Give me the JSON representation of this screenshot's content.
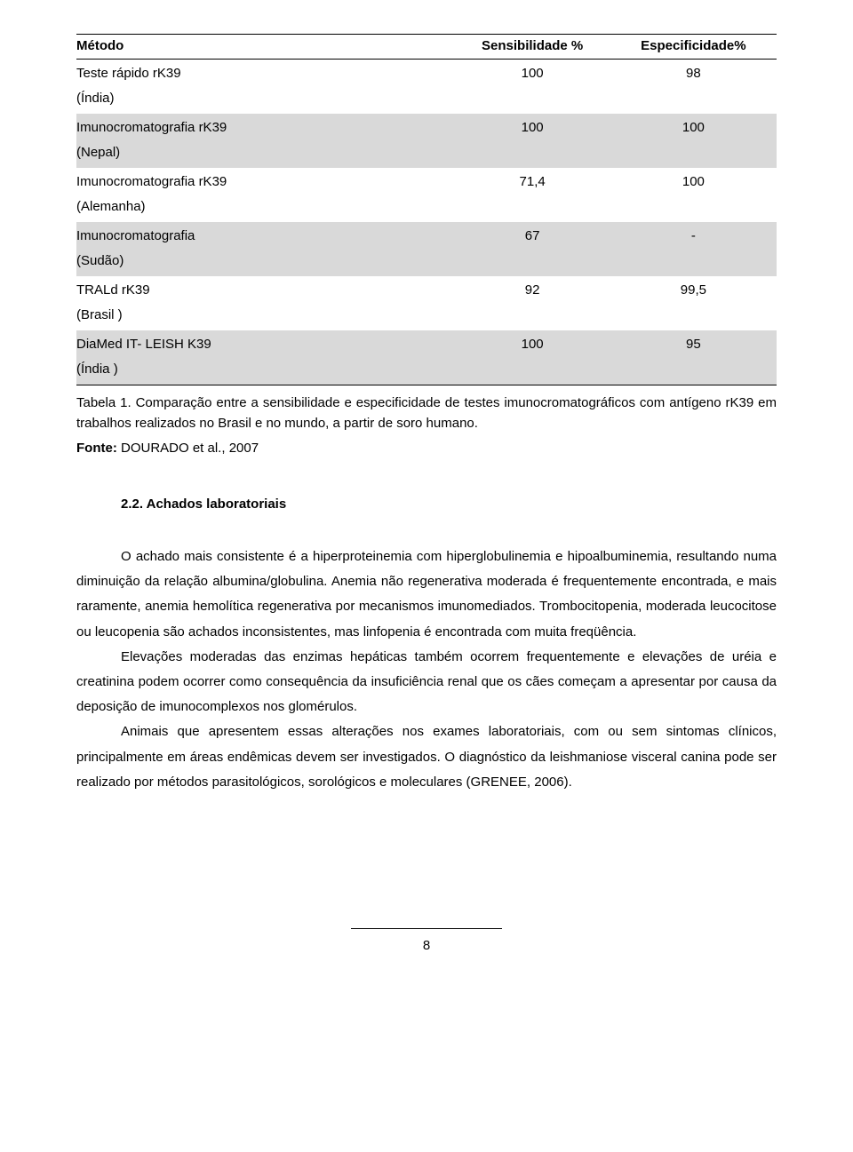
{
  "table": {
    "headers": [
      "Método",
      "Sensibilidade %",
      "Especificidade%"
    ],
    "column_widths": [
      "54%",
      "23%",
      "23%"
    ],
    "header_bg": "#ffffff",
    "shade_bg": "#d9d9d9",
    "border_color": "#000000",
    "rows": [
      {
        "method": "Teste rápido rK39\n(Índia)",
        "sens": "100",
        "spec": "98",
        "shaded": false
      },
      {
        "method": "Imunocromatografia rK39\n(Nepal)",
        "sens": "100",
        "spec": "100",
        "shaded": true
      },
      {
        "method": "Imunocromatografia rK39\n(Alemanha)",
        "sens": "71,4",
        "spec": "100",
        "shaded": false
      },
      {
        "method": "Imunocromatografia\n(Sudão)",
        "sens": "67",
        "spec": "-",
        "shaded": true
      },
      {
        "method": "TRALd rK39\n(Brasil )",
        "sens": "92",
        "spec": "99,5",
        "shaded": false
      },
      {
        "method": "DiaMed IT- LEISH K39\n(Índia )",
        "sens": "100",
        "spec": "95",
        "shaded": true
      }
    ]
  },
  "caption": "Tabela 1. Comparação entre a sensibilidade e especificidade de testes imunocromatográficos com antígeno rK39 em trabalhos realizados no Brasil e no mundo, a partir de soro humano.",
  "source_label": "Fonte:",
  "source_text": " DOURADO et al., 2007",
  "section_title": "2.2. Achados laboratoriais",
  "paragraphs": [
    "O achado mais consistente é a hiperproteinemia com hiperglobulinemia e hipoalbuminemia, resultando numa diminuição da relação albumina/globulina. Anemia não regenerativa moderada é frequentemente encontrada, e mais raramente, anemia hemolítica regenerativa por mecanismos imunomediados. Trombocitopenia, moderada leucocitose ou leucopenia são achados inconsistentes, mas linfopenia é encontrada com muita freqüência.",
    "Elevações moderadas das enzimas hepáticas também ocorrem frequentemente e elevações de uréia e creatinina podem ocorrer como consequência da insuficiência renal que os cães começam a apresentar por causa da deposição de imunocomplexos nos glomérulos.",
    "Animais que apresentem essas alterações nos exames laboratoriais, com ou sem sintomas clínicos, principalmente em áreas endêmicas devem ser investigados. O diagnóstico da leishmaniose visceral canina pode ser realizado por métodos parasitológicos, sorológicos e moleculares (GRENEE, 2006)."
  ],
  "page_number": "8",
  "fonts": {
    "body_size_pt": 11,
    "family": "Arial"
  }
}
